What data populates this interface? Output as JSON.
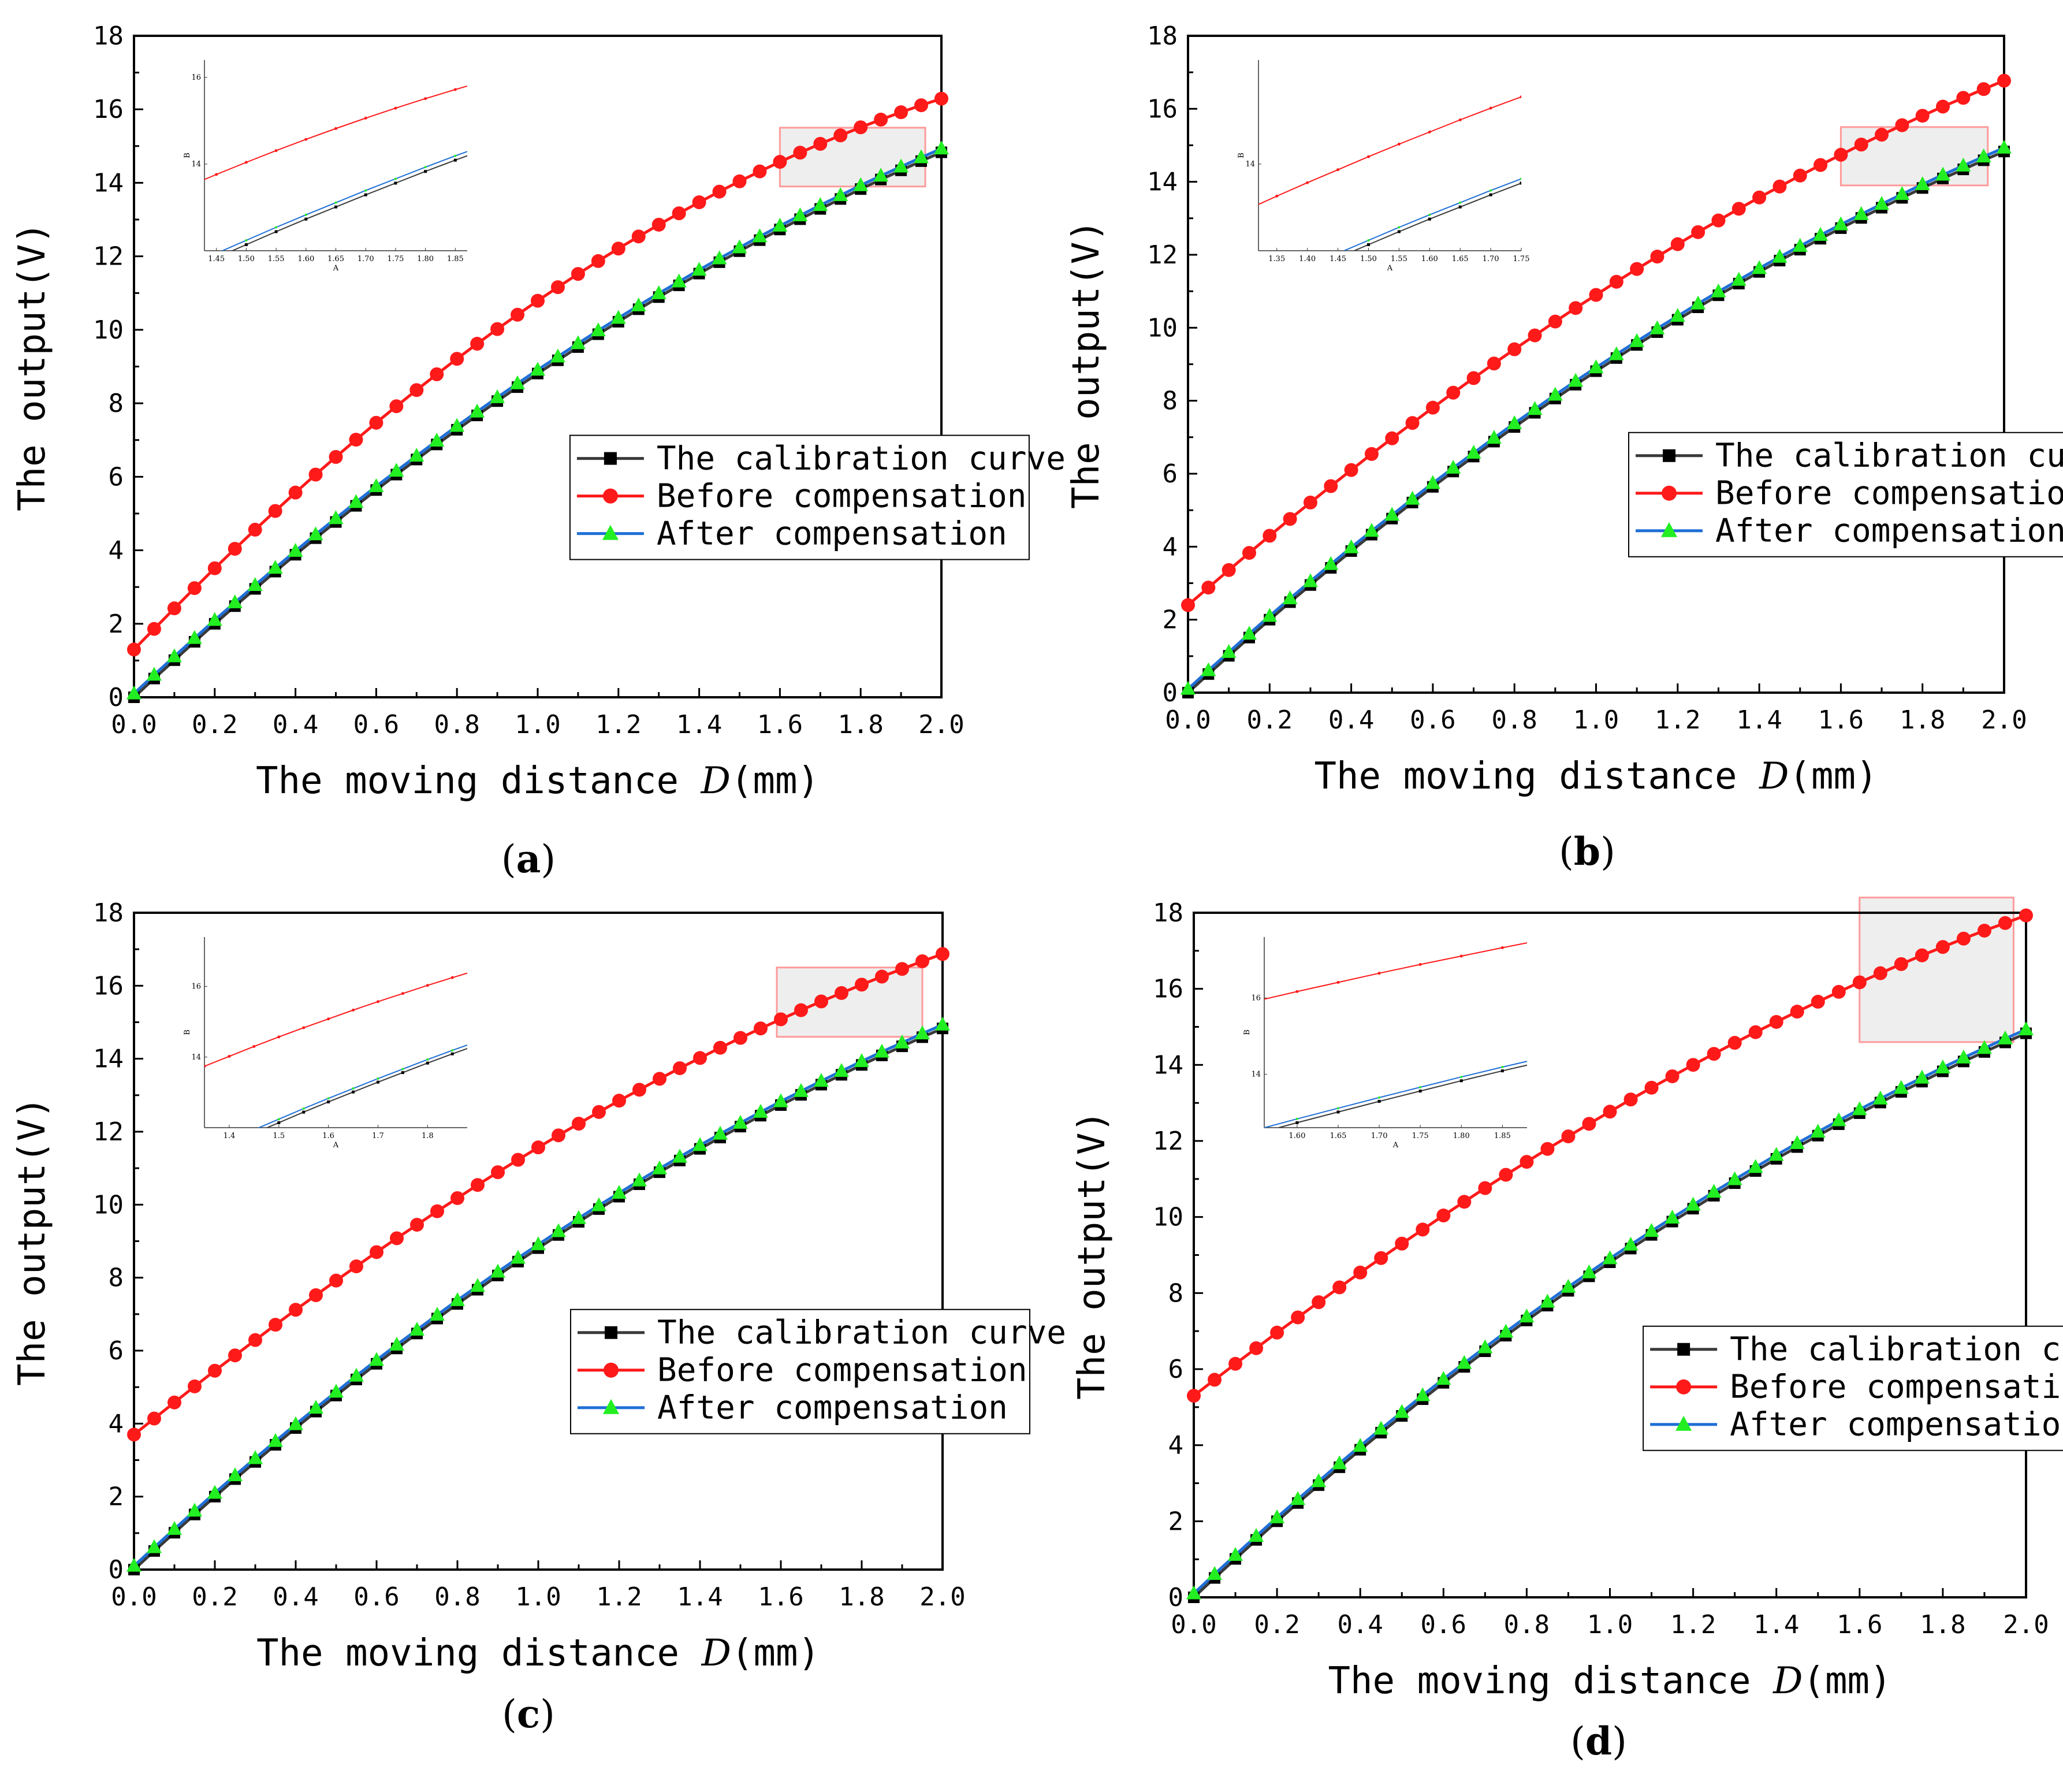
{
  "colors": {
    "calibration": "#000000",
    "calibration_line": "#3a3a3a",
    "before": "#ff1a1a",
    "after_line": "#1f6fd6",
    "after_marker": "#22ee22",
    "zoom_box_fill": "#eeeeee",
    "zoom_box_stroke": "#ff9a9a"
  },
  "chart_data": [
    {
      "panel_label": "a",
      "type": "line",
      "xlabel_prefix": "The moving distance ",
      "xlabel_var": "D",
      "xlabel_unit": "(mm)",
      "ylabel": "The output(V)",
      "xlim": [
        0,
        2.0
      ],
      "ylim": [
        0,
        18
      ],
      "xticks": [
        "0.0",
        "0.2",
        "0.4",
        "0.6",
        "0.8",
        "1.0",
        "1.2",
        "1.4",
        "1.6",
        "1.8",
        "2.0"
      ],
      "yticks": [
        "0",
        "2",
        "4",
        "6",
        "8",
        "10",
        "12",
        "14",
        "16",
        "18"
      ],
      "legend_position": "center-right",
      "legend": [
        "The calibration curve",
        "Before compensation",
        "After compensation"
      ],
      "x": [
        0.0,
        0.05,
        0.1,
        0.15,
        0.2,
        0.25,
        0.3,
        0.35,
        0.4,
        0.45,
        0.5,
        0.55,
        0.6,
        0.65,
        0.7,
        0.75,
        0.8,
        0.85,
        0.9,
        0.95,
        1.0,
        1.05,
        1.1,
        1.15,
        1.2,
        1.25,
        1.3,
        1.35,
        1.4,
        1.45,
        1.5,
        1.55,
        1.6,
        1.65,
        1.7,
        1.75,
        1.8,
        1.85,
        1.9,
        1.95,
        2.0
      ],
      "series": [
        {
          "name": "The calibration curve",
          "values": [
            0.0,
            0.51,
            1.01,
            1.51,
            2.0,
            2.48,
            2.95,
            3.42,
            3.88,
            4.33,
            4.77,
            5.21,
            5.64,
            6.06,
            6.47,
            6.88,
            7.28,
            7.67,
            8.06,
            8.44,
            8.81,
            9.17,
            9.53,
            9.88,
            10.22,
            10.56,
            10.89,
            11.21,
            11.53,
            11.84,
            12.14,
            12.44,
            12.73,
            13.01,
            13.29,
            13.56,
            13.83,
            14.09,
            14.34,
            14.59,
            14.83
          ]
        },
        {
          "name": "Before compensation",
          "values": [
            1.3,
            1.86,
            2.42,
            2.97,
            3.51,
            4.04,
            4.56,
            5.07,
            5.57,
            6.06,
            6.54,
            7.01,
            7.47,
            7.92,
            8.36,
            8.79,
            9.21,
            9.62,
            10.02,
            10.41,
            10.79,
            11.16,
            11.52,
            11.87,
            12.21,
            12.54,
            12.86,
            13.17,
            13.47,
            13.76,
            14.04,
            14.31,
            14.57,
            14.82,
            15.06,
            15.29,
            15.51,
            15.72,
            15.92,
            16.11,
            16.29
          ]
        },
        {
          "name": "After compensation",
          "values": [
            0.1,
            0.61,
            1.11,
            1.61,
            2.1,
            2.58,
            3.05,
            3.52,
            3.98,
            4.43,
            4.87,
            5.31,
            5.74,
            6.16,
            6.57,
            6.98,
            7.38,
            7.77,
            8.16,
            8.54,
            8.91,
            9.27,
            9.63,
            9.98,
            10.32,
            10.66,
            10.99,
            11.31,
            11.63,
            11.94,
            12.24,
            12.54,
            12.83,
            13.11,
            13.39,
            13.66,
            13.93,
            14.19,
            14.44,
            14.69,
            14.93
          ]
        }
      ],
      "zoom_region": {
        "x": [
          1.6,
          1.96
        ],
        "y": [
          13.9,
          15.5
        ]
      },
      "inset": {
        "xlim": [
          1.43,
          1.87
        ],
        "ylim": [
          12.0,
          16.4
        ],
        "xlabel": "A",
        "ylabel": "B",
        "xticks": [
          "1.45",
          "1.50",
          "1.55",
          "1.60",
          "1.65",
          "1.70",
          "1.75",
          "1.80",
          "1.85"
        ],
        "yticks": [
          "14",
          "16"
        ]
      }
    },
    {
      "panel_label": "b",
      "type": "line",
      "xlabel_prefix": "The moving distance ",
      "xlabel_var": "D",
      "xlabel_unit": "(mm)",
      "ylabel": "The output(V)",
      "xlim": [
        0,
        2.0
      ],
      "ylim": [
        0,
        18
      ],
      "xticks": [
        "0.0",
        "0.2",
        "0.4",
        "0.6",
        "0.8",
        "1.0",
        "1.2",
        "1.4",
        "1.6",
        "1.8",
        "2.0"
      ],
      "yticks": [
        "0",
        "2",
        "4",
        "6",
        "8",
        "10",
        "12",
        "14",
        "16",
        "18"
      ],
      "legend_position": "center-right",
      "legend": [
        "The calibration curve",
        "Before compensation",
        "After compensation"
      ],
      "x": [
        0.0,
        0.05,
        0.1,
        0.15,
        0.2,
        0.25,
        0.3,
        0.35,
        0.4,
        0.45,
        0.5,
        0.55,
        0.6,
        0.65,
        0.7,
        0.75,
        0.8,
        0.85,
        0.9,
        0.95,
        1.0,
        1.05,
        1.1,
        1.15,
        1.2,
        1.25,
        1.3,
        1.35,
        1.4,
        1.45,
        1.5,
        1.55,
        1.6,
        1.65,
        1.7,
        1.75,
        1.8,
        1.85,
        1.9,
        1.95,
        2.0
      ],
      "series": [
        {
          "name": "The calibration curve",
          "values": [
            0.0,
            0.51,
            1.01,
            1.51,
            2.0,
            2.48,
            2.95,
            3.42,
            3.88,
            4.33,
            4.77,
            5.21,
            5.64,
            6.06,
            6.47,
            6.88,
            7.28,
            7.67,
            8.06,
            8.44,
            8.81,
            9.17,
            9.53,
            9.88,
            10.22,
            10.56,
            10.89,
            11.21,
            11.53,
            11.84,
            12.14,
            12.44,
            12.73,
            13.01,
            13.29,
            13.56,
            13.83,
            14.09,
            14.34,
            14.59,
            14.83
          ]
        },
        {
          "name": "Before compensation",
          "values": [
            2.4,
            2.88,
            3.36,
            3.83,
            4.3,
            4.76,
            5.21,
            5.66,
            6.1,
            6.54,
            6.97,
            7.39,
            7.81,
            8.22,
            8.62,
            9.02,
            9.41,
            9.79,
            10.17,
            10.54,
            10.9,
            11.26,
            11.61,
            11.95,
            12.29,
            12.62,
            12.94,
            13.26,
            13.57,
            13.87,
            14.17,
            14.46,
            14.74,
            15.02,
            15.29,
            15.55,
            15.81,
            16.06,
            16.3,
            16.54,
            16.77
          ]
        },
        {
          "name": "After compensation",
          "values": [
            0.1,
            0.61,
            1.11,
            1.61,
            2.1,
            2.58,
            3.05,
            3.52,
            3.98,
            4.43,
            4.87,
            5.31,
            5.74,
            6.16,
            6.57,
            6.98,
            7.38,
            7.77,
            8.16,
            8.54,
            8.91,
            9.27,
            9.63,
            9.98,
            10.32,
            10.66,
            10.99,
            11.31,
            11.63,
            11.94,
            12.24,
            12.54,
            12.83,
            13.11,
            13.39,
            13.66,
            13.93,
            14.19,
            14.44,
            14.69,
            14.93
          ]
        }
      ],
      "zoom_region": {
        "x": [
          1.6,
          1.96
        ],
        "y": [
          13.9,
          15.5
        ]
      },
      "inset": {
        "xlim": [
          1.32,
          1.75
        ],
        "ylim": [
          12.0,
          16.4
        ],
        "xlabel": "A",
        "ylabel": "B",
        "xticks": [
          "1.35",
          "1.40",
          "1.45",
          "1.50",
          "1.55",
          "1.60",
          "1.65",
          "1.70",
          "1.75"
        ],
        "yticks": [
          "14"
        ]
      }
    },
    {
      "panel_label": "c",
      "type": "line",
      "xlabel_prefix": "The moving distance ",
      "xlabel_var": "D",
      "xlabel_unit": "(mm)",
      "ylabel": "The output(V)",
      "xlim": [
        0,
        2.0
      ],
      "ylim": [
        0,
        18
      ],
      "xticks": [
        "0.0",
        "0.2",
        "0.4",
        "0.6",
        "0.8",
        "1.0",
        "1.2",
        "1.4",
        "1.6",
        "1.8",
        "2.0"
      ],
      "yticks": [
        "0",
        "2",
        "4",
        "6",
        "8",
        "10",
        "12",
        "14",
        "16",
        "18"
      ],
      "legend_position": "center-right",
      "legend": [
        "The calibration curve",
        "Before compensation",
        "After compensation"
      ],
      "x": [
        0.0,
        0.05,
        0.1,
        0.15,
        0.2,
        0.25,
        0.3,
        0.35,
        0.4,
        0.45,
        0.5,
        0.55,
        0.6,
        0.65,
        0.7,
        0.75,
        0.8,
        0.85,
        0.9,
        0.95,
        1.0,
        1.05,
        1.1,
        1.15,
        1.2,
        1.25,
        1.3,
        1.35,
        1.4,
        1.45,
        1.5,
        1.55,
        1.6,
        1.65,
        1.7,
        1.75,
        1.8,
        1.85,
        1.9,
        1.95,
        2.0
      ],
      "series": [
        {
          "name": "The calibration curve",
          "values": [
            0.0,
            0.51,
            1.01,
            1.51,
            2.0,
            2.48,
            2.95,
            3.42,
            3.88,
            4.33,
            4.77,
            5.21,
            5.64,
            6.06,
            6.47,
            6.88,
            7.28,
            7.67,
            8.06,
            8.44,
            8.81,
            9.17,
            9.53,
            9.88,
            10.22,
            10.56,
            10.89,
            11.21,
            11.53,
            11.84,
            12.14,
            12.44,
            12.73,
            13.01,
            13.29,
            13.56,
            13.83,
            14.09,
            14.34,
            14.59,
            14.83
          ]
        },
        {
          "name": "Before compensation",
          "values": [
            3.7,
            4.14,
            4.58,
            5.02,
            5.45,
            5.87,
            6.29,
            6.71,
            7.12,
            7.52,
            7.92,
            8.31,
            8.7,
            9.08,
            9.45,
            9.82,
            10.18,
            10.54,
            10.89,
            11.23,
            11.57,
            11.9,
            12.22,
            12.54,
            12.85,
            13.15,
            13.45,
            13.74,
            14.02,
            14.3,
            14.57,
            14.83,
            15.08,
            15.33,
            15.57,
            15.8,
            16.03,
            16.25,
            16.46,
            16.67,
            16.87
          ]
        },
        {
          "name": "After compensation",
          "values": [
            0.1,
            0.61,
            1.11,
            1.61,
            2.1,
            2.58,
            3.05,
            3.52,
            3.98,
            4.43,
            4.87,
            5.31,
            5.74,
            6.16,
            6.57,
            6.98,
            7.38,
            7.77,
            8.16,
            8.54,
            8.91,
            9.27,
            9.63,
            9.98,
            10.32,
            10.66,
            10.99,
            11.31,
            11.63,
            11.94,
            12.24,
            12.54,
            12.83,
            13.11,
            13.39,
            13.66,
            13.93,
            14.19,
            14.44,
            14.69,
            14.93
          ]
        }
      ],
      "zoom_region": {
        "x": [
          1.59,
          1.95
        ],
        "y": [
          14.6,
          16.5
        ]
      },
      "inset": {
        "xlim": [
          1.35,
          1.88
        ],
        "ylim": [
          12.0,
          17.4
        ],
        "xlabel": "A",
        "ylabel": "B",
        "xticks": [
          "1.4",
          "1.5",
          "1.6",
          "1.7",
          "1.8"
        ],
        "yticks": [
          "14",
          "16"
        ]
      }
    },
    {
      "panel_label": "d",
      "type": "line",
      "xlabel_prefix": "The moving distance ",
      "xlabel_var": "D",
      "xlabel_unit": "(mm)",
      "ylabel": "The output(V)",
      "xlim": [
        0,
        2.0
      ],
      "ylim": [
        0,
        18
      ],
      "xticks": [
        "0.0",
        "0.2",
        "0.4",
        "0.6",
        "0.8",
        "1.0",
        "1.2",
        "1.4",
        "1.6",
        "1.8",
        "2.0"
      ],
      "yticks": [
        "0",
        "2",
        "4",
        "6",
        "8",
        "10",
        "12",
        "14",
        "16",
        "18"
      ],
      "legend_position": "center-right",
      "legend": [
        "The calibration curve",
        "Before compensation",
        "After compensation"
      ],
      "x": [
        0.0,
        0.05,
        0.1,
        0.15,
        0.2,
        0.25,
        0.3,
        0.35,
        0.4,
        0.45,
        0.5,
        0.55,
        0.6,
        0.65,
        0.7,
        0.75,
        0.8,
        0.85,
        0.9,
        0.95,
        1.0,
        1.05,
        1.1,
        1.15,
        1.2,
        1.25,
        1.3,
        1.35,
        1.4,
        1.45,
        1.5,
        1.55,
        1.6,
        1.65,
        1.7,
        1.75,
        1.8,
        1.85,
        1.9,
        1.95,
        2.0
      ],
      "series": [
        {
          "name": "The calibration curve",
          "values": [
            0.0,
            0.51,
            1.01,
            1.51,
            2.0,
            2.48,
            2.95,
            3.42,
            3.88,
            4.33,
            4.77,
            5.21,
            5.64,
            6.06,
            6.47,
            6.88,
            7.28,
            7.67,
            8.06,
            8.44,
            8.81,
            9.17,
            9.53,
            9.88,
            10.22,
            10.56,
            10.89,
            11.21,
            11.53,
            11.84,
            12.14,
            12.44,
            12.73,
            13.01,
            13.29,
            13.56,
            13.83,
            14.09,
            14.34,
            14.59,
            14.83
          ]
        },
        {
          "name": "Before compensation",
          "values": [
            5.3,
            5.72,
            6.14,
            6.55,
            6.96,
            7.36,
            7.76,
            8.15,
            8.54,
            8.92,
            9.3,
            9.67,
            10.04,
            10.4,
            10.76,
            11.11,
            11.45,
            11.79,
            12.12,
            12.45,
            12.77,
            13.09,
            13.4,
            13.7,
            14.0,
            14.29,
            14.58,
            14.86,
            15.13,
            15.4,
            15.66,
            15.92,
            16.17,
            16.41,
            16.65,
            16.88,
            17.1,
            17.32,
            17.53,
            17.73,
            17.93
          ]
        },
        {
          "name": "After compensation",
          "values": [
            0.1,
            0.61,
            1.11,
            1.61,
            2.1,
            2.58,
            3.05,
            3.52,
            3.98,
            4.43,
            4.87,
            5.31,
            5.74,
            6.16,
            6.57,
            6.98,
            7.38,
            7.77,
            8.16,
            8.54,
            8.91,
            9.27,
            9.63,
            9.98,
            10.32,
            10.66,
            10.99,
            11.31,
            11.63,
            11.94,
            12.24,
            12.54,
            12.83,
            13.11,
            13.39,
            13.66,
            13.93,
            14.19,
            14.44,
            14.69,
            14.93
          ]
        }
      ],
      "zoom_region": {
        "x": [
          1.6,
          1.97
        ],
        "y": [
          14.6,
          18.4
        ]
      },
      "inset": {
        "xlim": [
          1.56,
          1.88
        ],
        "ylim": [
          12.6,
          17.6
        ],
        "xlabel": "A",
        "ylabel": "B",
        "xticks": [
          "1.60",
          "1.65",
          "1.70",
          "1.75",
          "1.80",
          "1.85"
        ],
        "yticks": [
          "14",
          "16"
        ]
      }
    }
  ]
}
